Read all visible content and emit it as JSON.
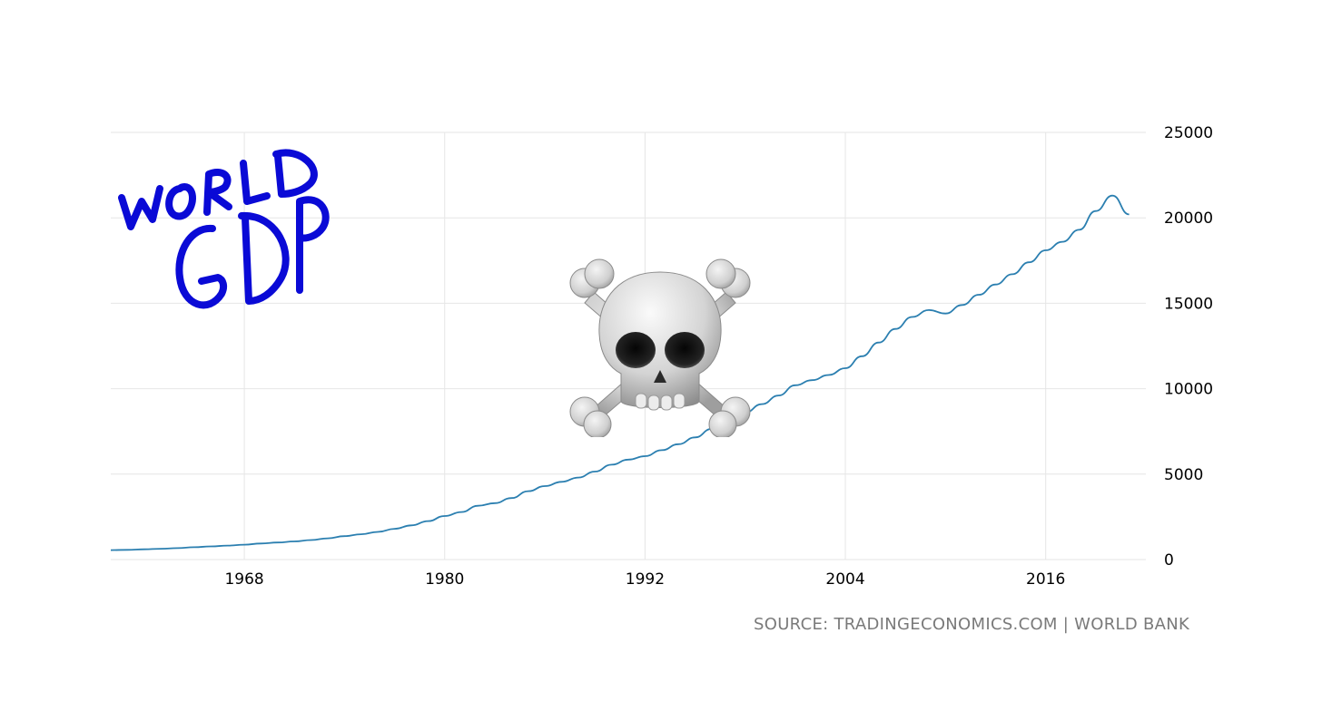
{
  "colors": {
    "line": "#2b7fb0",
    "grid": "#e6e6e6",
    "handwriting": "#0a0ad6",
    "axis_text": "#000000",
    "source_text": "#7a7a7a"
  },
  "annotation": {
    "handwritten_title_line1": "WORLD",
    "handwritten_title_line2": "GDP",
    "emoji": "☠"
  },
  "source": "SOURCE: TRADINGECONOMICS.COM | WORLD BANK",
  "chart_data": {
    "type": "line",
    "title": "",
    "xlabel": "",
    "ylabel": "",
    "xlim": [
      1960,
      2022
    ],
    "ylim": [
      0,
      25000
    ],
    "y_axis_side": "right",
    "grid": true,
    "x_ticks": [
      1968,
      1980,
      1992,
      2004,
      2016
    ],
    "y_ticks": [
      0,
      5000,
      10000,
      15000,
      20000,
      25000
    ],
    "series": [
      {
        "x": [
          1960,
          1961,
          1962,
          1963,
          1964,
          1965,
          1966,
          1967,
          1968,
          1969,
          1970,
          1971,
          1972,
          1973,
          1974,
          1975,
          1976,
          1977,
          1978,
          1979,
          1980,
          1981,
          1982,
          1983,
          1984,
          1985,
          1986,
          1987,
          1988,
          1989,
          1990,
          1991,
          1992,
          1993,
          1994,
          1995,
          1996,
          1997,
          1998,
          1999,
          2000,
          2001,
          2002,
          2003,
          2004,
          2005,
          2006,
          2007,
          2008,
          2009,
          2010,
          2011,
          2012,
          2013,
          2014,
          2015,
          2016,
          2017,
          2018,
          2019,
          2020,
          2021
        ],
        "values": [
          550,
          570,
          600,
          630,
          670,
          720,
          770,
          820,
          870,
          940,
          1000,
          1060,
          1140,
          1240,
          1370,
          1480,
          1620,
          1800,
          2000,
          2250,
          2550,
          2780,
          3150,
          3300,
          3600,
          4000,
          4300,
          4550,
          4800,
          5150,
          5550,
          5850,
          6050,
          6400,
          6750,
          7150,
          7650,
          8100,
          8600,
          9100,
          9600,
          10200,
          10500,
          10800,
          11200,
          11900,
          12700,
          13500,
          14200,
          14600,
          14400,
          14900,
          15500,
          16100,
          16700,
          17400,
          18100,
          18600,
          19300,
          20400,
          21300,
          20200
        ]
      }
    ]
  }
}
